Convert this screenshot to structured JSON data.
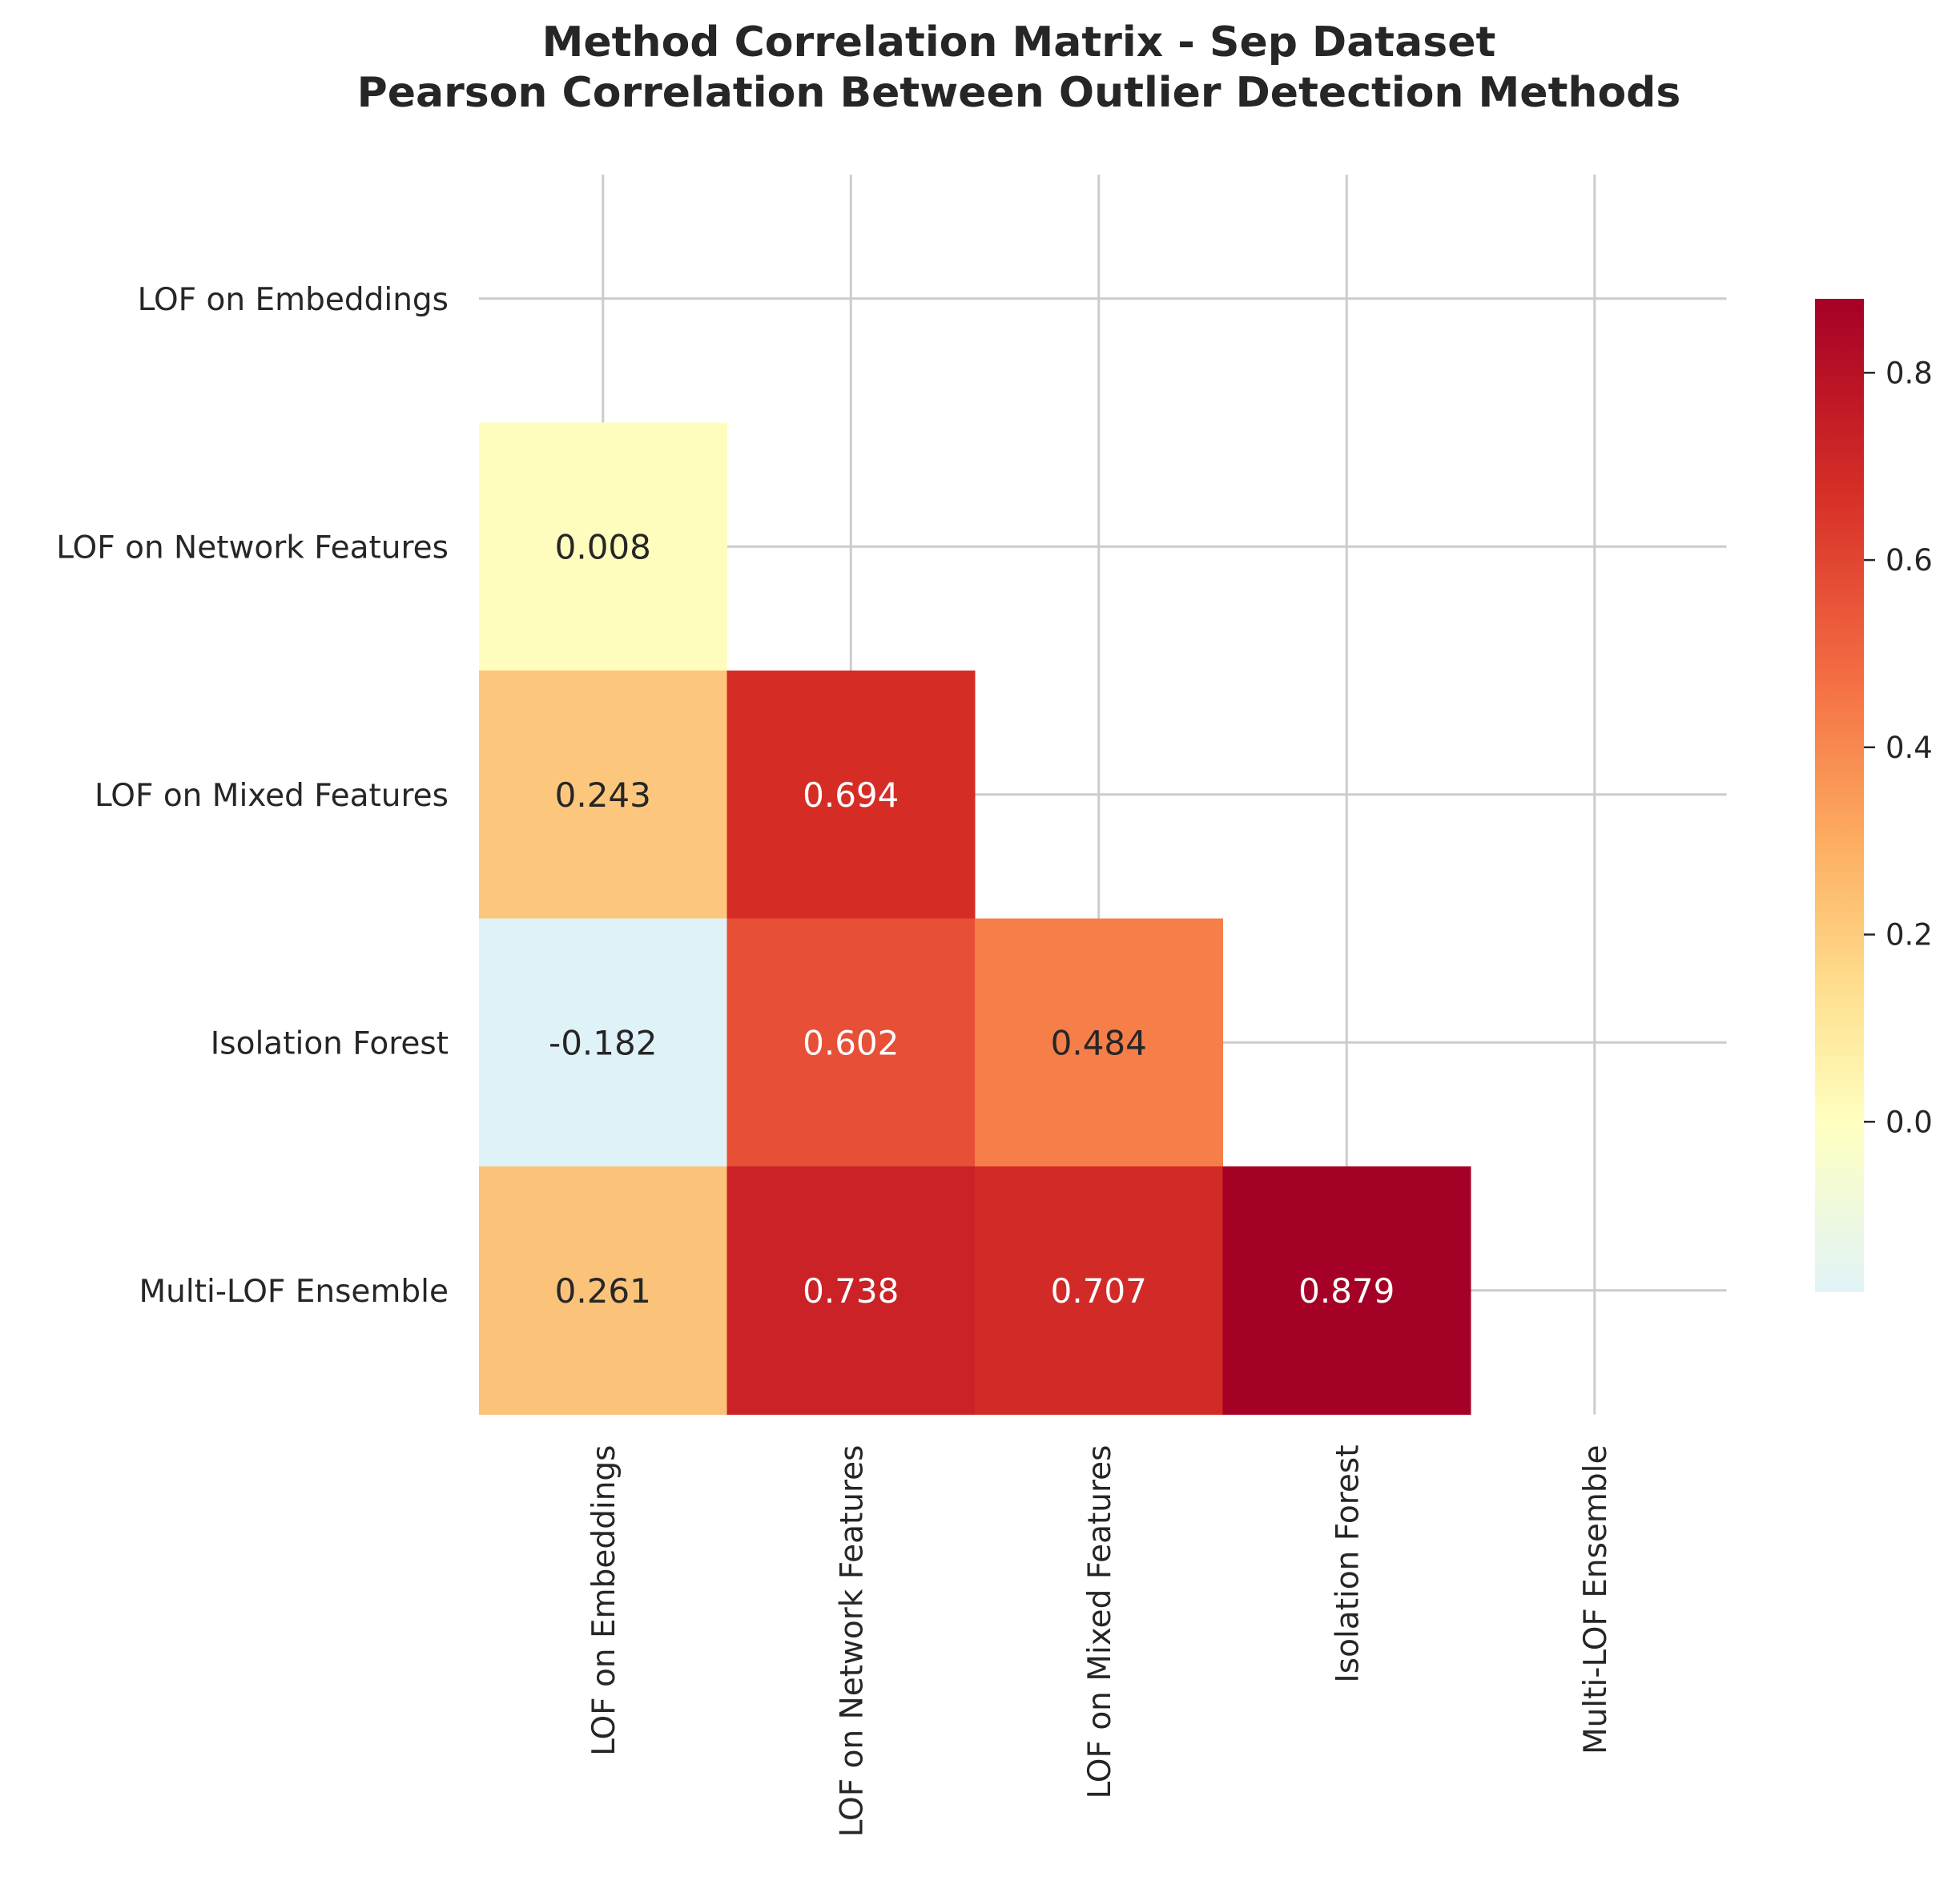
{
  "chart_data": {
    "type": "heatmap",
    "title": "Method Correlation Matrix - Sep Dataset",
    "subtitle": "Pearson Correlation Between Outlier Detection Methods",
    "labels": [
      "LOF on Embeddings",
      "LOF on Network Features",
      "LOF on Mixed Features",
      "Isolation Forest",
      "Multi-LOF Ensemble"
    ],
    "matrix": [
      [
        null,
        null,
        null,
        null,
        null
      ],
      [
        0.008,
        null,
        null,
        null,
        null
      ],
      [
        0.243,
        0.694,
        null,
        null,
        null
      ],
      [
        -0.182,
        0.602,
        0.484,
        null,
        null
      ],
      [
        0.261,
        0.738,
        0.707,
        0.879,
        null
      ]
    ],
    "mask": "upper-triangle-including-diagonal",
    "value_format": "3 decimals",
    "colormap": "RdYlBu_r (centered at 0)",
    "colorbar": {
      "range": [
        -0.182,
        0.879
      ],
      "ticks": [
        "0.0",
        "0.2",
        "0.4",
        "0.6",
        "0.8"
      ],
      "tick_values": [
        0.0,
        0.2,
        0.4,
        0.6,
        0.8
      ]
    },
    "grid": true,
    "legend_position": "right"
  }
}
